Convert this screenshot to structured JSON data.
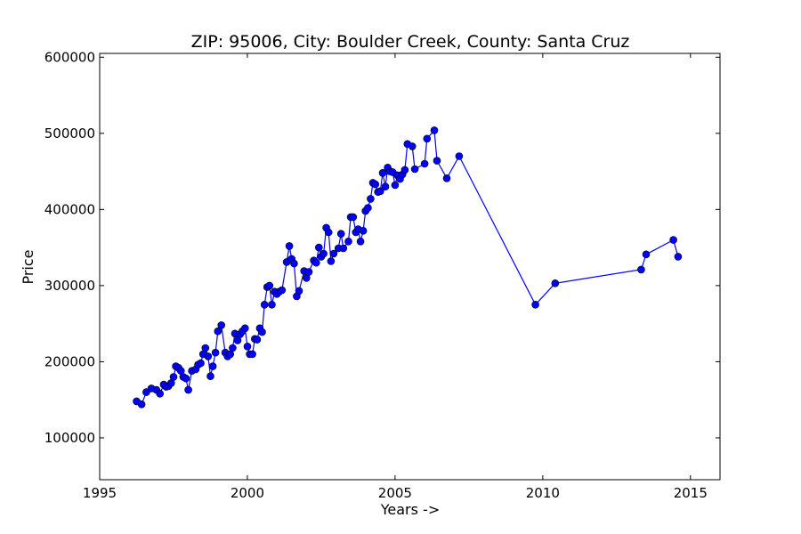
{
  "chart_data": {
    "type": "line",
    "title": "ZIP: 95006, City: Boulder Creek, County: Santa Cruz",
    "xlabel": "Years ->",
    "ylabel": "Price",
    "xlim": [
      1995,
      2016
    ],
    "ylim": [
      45000,
      605000
    ],
    "xticks": [
      1995,
      2000,
      2005,
      2010,
      2015
    ],
    "yticks": [
      100000,
      200000,
      300000,
      400000,
      500000,
      600000
    ],
    "grid": false,
    "series": [
      {
        "color": "#0000ff",
        "marker": "circle",
        "x": [
          1996.25,
          1996.42,
          1996.58,
          1996.75,
          1996.92,
          1997.04,
          1997.17,
          1997.25,
          1997.33,
          1997.42,
          1997.5,
          1997.58,
          1997.67,
          1997.75,
          1997.83,
          1997.92,
          1998.0,
          1998.12,
          1998.25,
          1998.33,
          1998.42,
          1998.5,
          1998.58,
          1998.67,
          1998.75,
          1998.83,
          1998.92,
          1999.0,
          1999.12,
          1999.25,
          1999.33,
          1999.42,
          1999.5,
          1999.58,
          1999.67,
          1999.75,
          1999.83,
          1999.92,
          2000.0,
          2000.08,
          2000.17,
          2000.25,
          2000.33,
          2000.42,
          2000.5,
          2000.58,
          2000.67,
          2000.75,
          2000.83,
          2000.92,
          2001.0,
          2001.08,
          2001.17,
          2001.33,
          2001.42,
          2001.5,
          2001.58,
          2001.67,
          2001.75,
          2001.92,
          2002.0,
          2002.08,
          2002.25,
          2002.33,
          2002.42,
          2002.5,
          2002.58,
          2002.67,
          2002.75,
          2002.83,
          2002.92,
          2003.08,
          2003.17,
          2003.25,
          2003.42,
          2003.5,
          2003.58,
          2003.67,
          2003.75,
          2003.83,
          2003.92,
          2004.0,
          2004.08,
          2004.17,
          2004.25,
          2004.33,
          2004.42,
          2004.5,
          2004.58,
          2004.67,
          2004.75,
          2004.83,
          2004.92,
          2005.0,
          2005.08,
          2005.17,
          2005.25,
          2005.33,
          2005.42,
          2005.58,
          2005.67,
          2006.0,
          2006.08,
          2006.33,
          2006.42,
          2006.75,
          2007.17,
          2009.75,
          2010.42,
          2013.33,
          2013.5,
          2014.42,
          2014.58
        ],
        "y": [
          148000,
          144000,
          160000,
          165000,
          163000,
          158000,
          170000,
          167000,
          168000,
          172000,
          180000,
          194000,
          192000,
          188000,
          180000,
          178000,
          163000,
          188000,
          190000,
          196000,
          198000,
          210000,
          218000,
          207000,
          181000,
          194000,
          212000,
          240000,
          248000,
          212000,
          207000,
          210000,
          218000,
          237000,
          228000,
          236000,
          240000,
          244000,
          220000,
          210000,
          210000,
          230000,
          229000,
          244000,
          239000,
          275000,
          298000,
          300000,
          275000,
          292000,
          289000,
          292000,
          294000,
          331000,
          352000,
          335000,
          329000,
          286000,
          293000,
          319000,
          310000,
          318000,
          333000,
          330000,
          350000,
          338000,
          342000,
          376000,
          370000,
          332000,
          342000,
          349000,
          368000,
          349000,
          358000,
          390000,
          390000,
          370000,
          374000,
          358000,
          372000,
          398000,
          402000,
          414000,
          435000,
          433000,
          423000,
          424000,
          448000,
          430000,
          455000,
          450000,
          449000,
          432000,
          445000,
          440000,
          446000,
          452000,
          486000,
          483000,
          453000,
          460000,
          493000,
          504000,
          464000,
          441000,
          470000,
          275000,
          303000,
          321000,
          341000,
          360000,
          338000
        ]
      }
    ]
  }
}
